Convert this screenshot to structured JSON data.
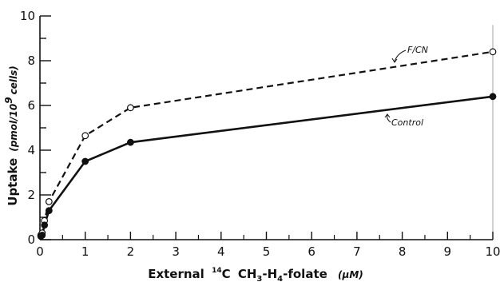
{
  "chart_data": {
    "type": "line",
    "x_label": {
      "prefix": "External",
      "isotope": "14",
      "isotope_element": "C",
      "compound": "CH",
      "sub1": "3",
      "mid": "-H",
      "sub2": "4",
      "suffix": "-folate",
      "unit": "(μM)"
    },
    "y_label": {
      "main": "Uptake",
      "unit_prefix": "(pmol/10",
      "unit_exp": "9",
      "unit_suffix": "cells)"
    },
    "xlim": [
      0,
      10
    ],
    "ylim": [
      0,
      10
    ],
    "x_ticks": [
      "0",
      "1",
      "2",
      "3",
      "4",
      "5",
      "6",
      "7",
      "8",
      "9",
      "10"
    ],
    "y_ticks": [
      "0",
      "2",
      "4",
      "6",
      "8",
      "10"
    ],
    "grid": false,
    "series": [
      {
        "name": "F/CN",
        "style": "dashed",
        "marker": "open-circle",
        "points": [
          {
            "x": 0.02,
            "y": 0.2
          },
          {
            "x": 0.05,
            "y": 0.3
          },
          {
            "x": 0.1,
            "y": 0.85
          },
          {
            "x": 0.2,
            "y": 1.7
          },
          {
            "x": 1.0,
            "y": 4.65
          },
          {
            "x": 2.0,
            "y": 5.9
          },
          {
            "x": 10.0,
            "y": 8.4
          }
        ]
      },
      {
        "name": "Control",
        "style": "solid",
        "marker": "filled-circle",
        "points": [
          {
            "x": 0.02,
            "y": 0.15
          },
          {
            "x": 0.05,
            "y": 0.2
          },
          {
            "x": 0.1,
            "y": 0.65
          },
          {
            "x": 0.2,
            "y": 1.3
          },
          {
            "x": 1.0,
            "y": 3.5
          },
          {
            "x": 2.0,
            "y": 4.35
          },
          {
            "x": 10.0,
            "y": 6.4
          }
        ]
      }
    ],
    "annotations": [
      {
        "text": "F/CN",
        "series": 0
      },
      {
        "text": "Control",
        "series": 1
      }
    ]
  }
}
